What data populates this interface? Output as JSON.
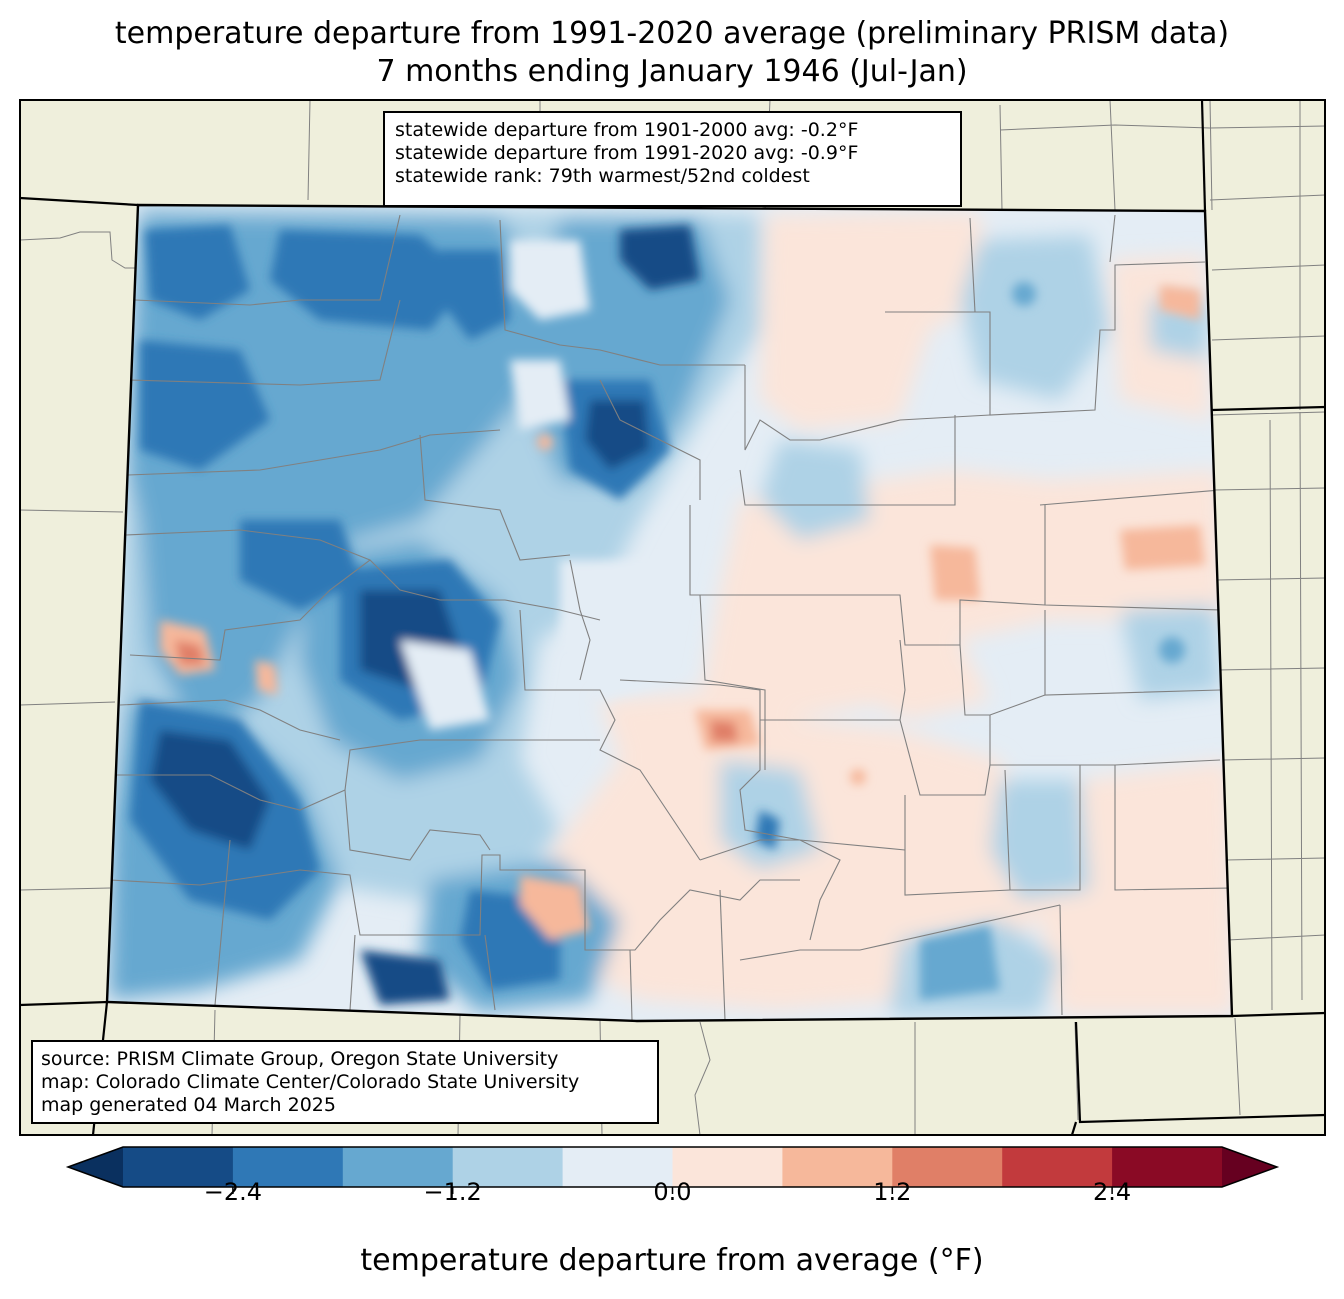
{
  "title": {
    "line1": "temperature departure from 1991-2020 average (preliminary PRISM data)",
    "line2": "7 months ending January 1946 (Jul-Jan)"
  },
  "stats": {
    "line1": "statewide departure from 1901-2000 avg: -0.2°F",
    "line2": "statewide departure from 1991-2020 avg: -0.9°F",
    "line3": "statewide rank: 79th warmest/52nd coldest"
  },
  "source": {
    "line1": "source: PRISM Climate Group, Oregon State University",
    "line2": "map: Colorado Climate Center/Colorado State University",
    "line3": "map generated 04 March 2025"
  },
  "colorbar": {
    "title": "temperature departure from average (°F)",
    "ticks": [
      "−2.4",
      "−1.2",
      "0.0",
      "1.2",
      "2.4"
    ],
    "tick_values": [
      -2.4,
      -1.2,
      0.0,
      1.2,
      2.4
    ],
    "bounds": [
      -3.0,
      -2.4,
      -1.8,
      -1.2,
      -0.6,
      0.0,
      0.6,
      1.2,
      1.8,
      2.4,
      3.0
    ],
    "colors": [
      "#154b86",
      "#2f78b6",
      "#66a8d0",
      "#aed2e6",
      "#e4edf5",
      "#fbe5da",
      "#f6b89b",
      "#e07f67",
      "#c23a3d",
      "#8a0a25"
    ],
    "under_color": "#0a305f",
    "over_color": "#660020"
  },
  "colors": {
    "land": "#efefdc",
    "state_border": "#000000",
    "county_border": "#808080"
  }
}
